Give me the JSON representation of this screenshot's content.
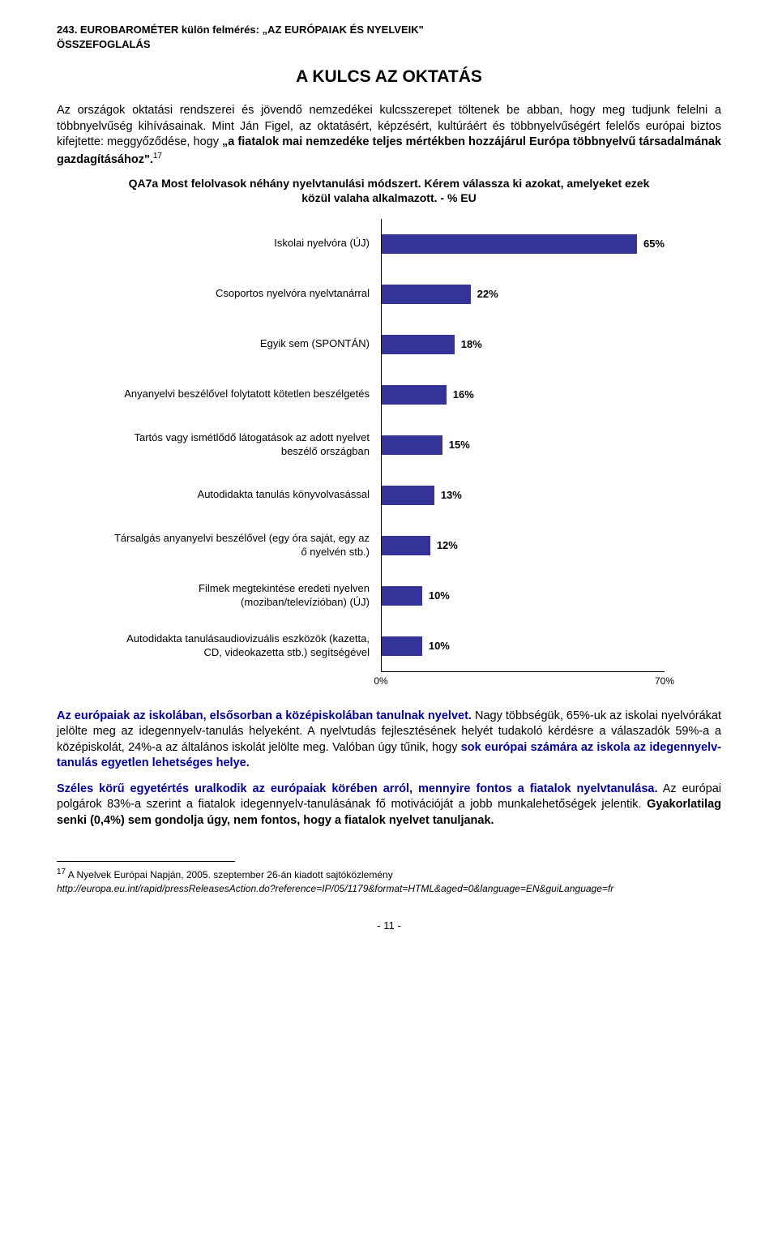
{
  "header": {
    "line1": "243. EUROBAROMÉTER külön felmérés: „AZ EURÓPAIAK ÉS NYELVEIK\"",
    "line2": "ÖSSZEFOGLALÁS"
  },
  "title": "A KULCS AZ OKTATÁS",
  "intro": {
    "p1_a": "Az országok oktatási rendszerei és jövendő nemzedékei kulcsszerepet töltenek be abban, hogy meg tudjunk felelni a többnyelvűség kihívásainak. Mint Ján Figel, az oktatásért, képzésért, kultúráért és többnyelvűségért felelős európai biztos kifejtette: meggyőződése, hogy ",
    "p1_bold": "„a fiatalok mai nemzedéke teljes mértékben hozzájárul Európa többnyelvű társadalmának gazdagításához\".",
    "p1_sup": "17"
  },
  "chart": {
    "title": "QA7a Most felolvasok néhány nyelvtanulási módszert. Kérem válassza ki azokat, amelyeket ezek közül valaha alkalmazott. - % EU",
    "bar_color": "#333399",
    "axis_min_label": "0%",
    "axis_max_label": "70%",
    "axis_max": 70,
    "items": [
      {
        "label": "Iskolai nyelvóra (ÚJ)",
        "value": 65,
        "vlabel": "65%"
      },
      {
        "label": "Csoportos nyelvóra nyelvtanárral",
        "value": 22,
        "vlabel": "22%"
      },
      {
        "label": "Egyik sem (SPONTÁN)",
        "value": 18,
        "vlabel": "18%"
      },
      {
        "label": "Anyanyelvi beszélővel folytatott kötetlen beszélgetés",
        "value": 16,
        "vlabel": "16%"
      },
      {
        "label": "Tartós vagy ismétlődő látogatások az adott nyelvet beszélő országban",
        "value": 15,
        "vlabel": "15%"
      },
      {
        "label": "Autodidakta tanulás könyvolvasással",
        "value": 13,
        "vlabel": "13%"
      },
      {
        "label": "Társalgás anyanyelvi beszélővel (egy óra saját, egy az ő nyelvén stb.)",
        "value": 12,
        "vlabel": "12%"
      },
      {
        "label": "Filmek megtekintése eredeti nyelven (moziban/televízióban) (ÚJ)",
        "value": 10,
        "vlabel": "10%"
      },
      {
        "label": "Autodidakta tanulásaudiovizuális eszközök (kazetta, CD, videokazetta stb.) segítségével",
        "value": 10,
        "vlabel": "10%"
      }
    ]
  },
  "body2": {
    "p1_blue": "Az európaiak az iskolában, elsősorban a középiskolában tanulnak nyelvet.",
    "p1_rest": " Nagy többségük, 65%-uk az iskolai nyelvórákat jelölte meg az idegennyelv-tanulás helyeként. A nyelvtudás fejlesztésének helyét tudakoló kérdésre a válaszadók 59%-a a középiskolát, 24%-a az általános iskolát jelölte meg. Valóban úgy tűnik, hogy ",
    "p1_blue2": "sok európai számára az iskola az idegennyelv-tanulás egyetlen lehetséges helye.",
    "p2_blue": "Széles körű egyetértés uralkodik az európaiak körében arról, mennyire fontos a fiatalok nyelvtanulása.",
    "p2_rest": " Az európai polgárok 83%-a szerint a fiatalok idegennyelv-tanulásának fő motivációját a jobb munkalehetőségek jelentik. ",
    "p2_bold": "Gyakorlatilag senki (0,4%) sem gondolja úgy, nem fontos, hogy a fiatalok nyelvet tanuljanak."
  },
  "footnote": {
    "num": "17",
    "text1": " A Nyelvek Európai Napján, 2005. szeptember 26-án kiadott sajtóközlemény",
    "url": "http://europa.eu.int/rapid/pressReleasesAction.do?reference=IP/05/1179&format=HTML&aged=0&language=EN&guiLanguage=fr"
  },
  "pagenum": "- 11 -"
}
